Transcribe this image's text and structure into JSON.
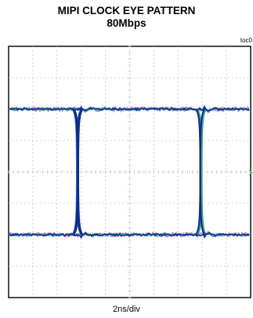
{
  "header": {
    "title": "MIPI CLOCK EYE PATTERN",
    "subtitle": "80Mbps",
    "figure_id": "toc0"
  },
  "chart_data": {
    "type": "line",
    "title": "MIPI CLOCK EYE PATTERN",
    "subtitle": "80Mbps",
    "xlabel": "2ns/div",
    "ylabel": "",
    "x_divisions": 10,
    "y_divisions": 8,
    "grid": true,
    "units_x": "div",
    "high_level_div": 2.0,
    "low_level_div": -2.0,
    "crossings_x_div": [
      2.85,
      7.95
    ],
    "colors": {
      "background": "#ffffff",
      "frame": "#000000",
      "grid": "#b8b8b8",
      "trace_main": "#102a8c",
      "trace_noise_pink": "#d66ad0",
      "trace_noise_green": "#3fa85a",
      "trace_noise_cyan": "#39a6d8"
    }
  }
}
